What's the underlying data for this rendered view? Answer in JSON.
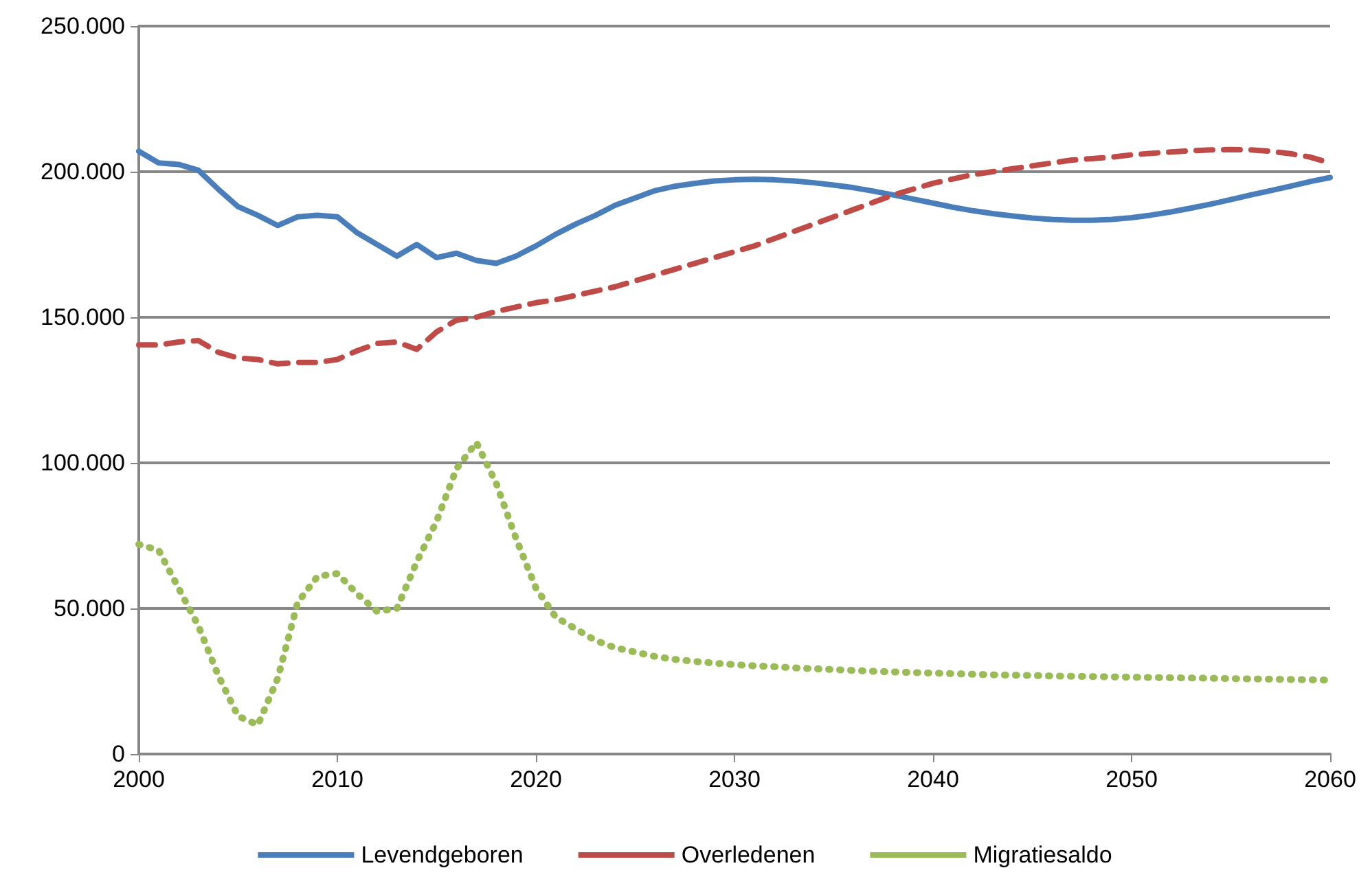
{
  "chart_data": {
    "type": "line",
    "x": [
      2000,
      2001,
      2002,
      2003,
      2004,
      2005,
      2006,
      2007,
      2008,
      2009,
      2010,
      2011,
      2012,
      2013,
      2014,
      2015,
      2016,
      2017,
      2018,
      2019,
      2020,
      2021,
      2022,
      2023,
      2024,
      2025,
      2026,
      2027,
      2028,
      2029,
      2030,
      2031,
      2032,
      2033,
      2034,
      2035,
      2036,
      2037,
      2038,
      2039,
      2040,
      2041,
      2042,
      2043,
      2044,
      2045,
      2046,
      2047,
      2048,
      2049,
      2050,
      2051,
      2052,
      2053,
      2054,
      2055,
      2056,
      2057,
      2058,
      2059,
      2060
    ],
    "series": [
      {
        "name": "Levendgeboren",
        "color": "#4a7ebb",
        "line_style": "solid",
        "values": [
          207000,
          203000,
          202500,
          200500,
          194000,
          188000,
          185000,
          181500,
          184500,
          185000,
          184500,
          179000,
          175000,
          171000,
          175000,
          170500,
          172000,
          169500,
          168500,
          171000,
          174500,
          178500,
          182000,
          185000,
          188500,
          191000,
          193500,
          195000,
          196000,
          196800,
          197200,
          197400,
          197200,
          196800,
          196200,
          195400,
          194500,
          193300,
          192000,
          190600,
          189200,
          187800,
          186600,
          185600,
          184800,
          184100,
          183600,
          183300,
          183300,
          183600,
          184200,
          185100,
          186200,
          187500,
          188900,
          190400,
          192000,
          193500,
          195000,
          196600,
          198000
        ]
      },
      {
        "name": "Overledenen",
        "color": "#be4b48",
        "line_style": "dashed",
        "values": [
          140500,
          140500,
          141500,
          142000,
          138000,
          136000,
          135500,
          134000,
          134500,
          134500,
          135500,
          138500,
          141000,
          141500,
          139000,
          145000,
          149000,
          150000,
          152000,
          153500,
          155000,
          156000,
          157500,
          159000,
          160500,
          162500,
          164500,
          166500,
          168500,
          170500,
          172500,
          174500,
          177000,
          179500,
          182000,
          184500,
          187000,
          189500,
          192000,
          194000,
          196000,
          197500,
          199000,
          200000,
          201000,
          202000,
          203000,
          204000,
          204500,
          205000,
          205800,
          206300,
          206800,
          207200,
          207500,
          207600,
          207500,
          207000,
          206200,
          205000,
          203000
        ]
      },
      {
        "name": "Migratiesaldo",
        "color": "#9bbb59",
        "line_style": "dotted",
        "values": [
          72000,
          70000,
          57000,
          44000,
          27000,
          13000,
          10000,
          26000,
          52000,
          61000,
          62000,
          55000,
          49000,
          50000,
          66000,
          80000,
          98000,
          107000,
          93000,
          74000,
          57000,
          47000,
          43000,
          39000,
          36500,
          35000,
          33500,
          32500,
          31800,
          31200,
          30700,
          30300,
          30000,
          29600,
          29300,
          29000,
          28700,
          28400,
          28200,
          28000,
          27800,
          27600,
          27400,
          27200,
          27100,
          27000,
          26800,
          26700,
          26600,
          26500,
          26400,
          26300,
          26200,
          26100,
          26000,
          25900,
          25800,
          25700,
          25600,
          25500,
          25400
        ]
      }
    ],
    "xlim": [
      2000,
      2060
    ],
    "xticks": [
      2000,
      2010,
      2020,
      2030,
      2040,
      2050,
      2060
    ],
    "ylim": [
      0,
      250000
    ],
    "yticks": [
      0,
      {
        "value": 50000,
        "label": "50.000"
      },
      {
        "value": 100000,
        "label": "100.000"
      },
      {
        "value": 150000,
        "label": "150.000"
      },
      {
        "value": 200000,
        "label": "200.000"
      },
      {
        "value": 250000,
        "label": "250.000"
      }
    ],
    "grid": "y",
    "legend": "bottom",
    "marker": "none"
  }
}
